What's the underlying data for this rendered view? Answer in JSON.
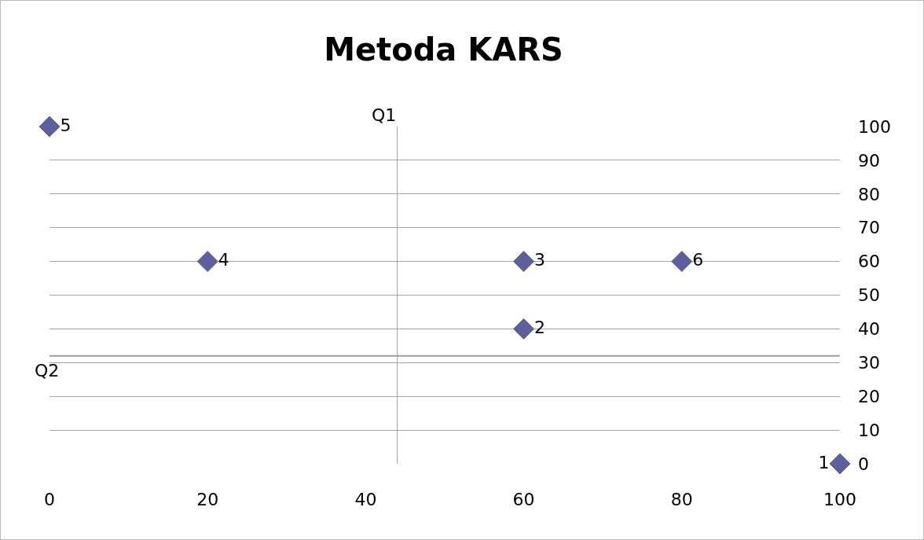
{
  "chart_data": {
    "type": "scatter",
    "title": "Metoda KARS",
    "x": [
      100,
      60,
      60,
      20,
      0,
      80
    ],
    "series": [
      {
        "name": "1",
        "color": "#5f5f9e",
        "values": [
          0,
          null,
          null,
          null,
          null,
          null
        ]
      },
      {
        "name": "2",
        "color": "#5f5f9e",
        "values": [
          null,
          40,
          null,
          null,
          null,
          null
        ]
      },
      {
        "name": "3",
        "color": "#5f5f9e",
        "values": [
          null,
          null,
          60,
          null,
          null,
          null
        ]
      },
      {
        "name": "4",
        "color": "#5f5f9e",
        "values": [
          null,
          null,
          null,
          60,
          null,
          null
        ]
      },
      {
        "name": "5",
        "color": "#5f5f9e",
        "values": [
          null,
          null,
          null,
          null,
          100,
          null
        ]
      },
      {
        "name": "6",
        "color": "#5f5f9e",
        "values": [
          null,
          null,
          null,
          null,
          null,
          60
        ]
      }
    ],
    "xlim": [
      0,
      100
    ],
    "xticks": [
      0,
      20,
      40,
      60,
      80,
      100
    ],
    "ylim": [
      0,
      100
    ],
    "yticks": [
      0,
      10,
      20,
      30,
      40,
      50,
      60,
      70,
      80,
      90,
      100
    ],
    "ref_lines": [
      {
        "axis": "x",
        "value": 44,
        "label": "Q1",
        "color": "#a0a0a0"
      },
      {
        "axis": "y",
        "value": 32,
        "label": "Q2",
        "color": "#a0a0a0"
      }
    ],
    "grid": "y",
    "legend": false,
    "marker": "diamond"
  }
}
